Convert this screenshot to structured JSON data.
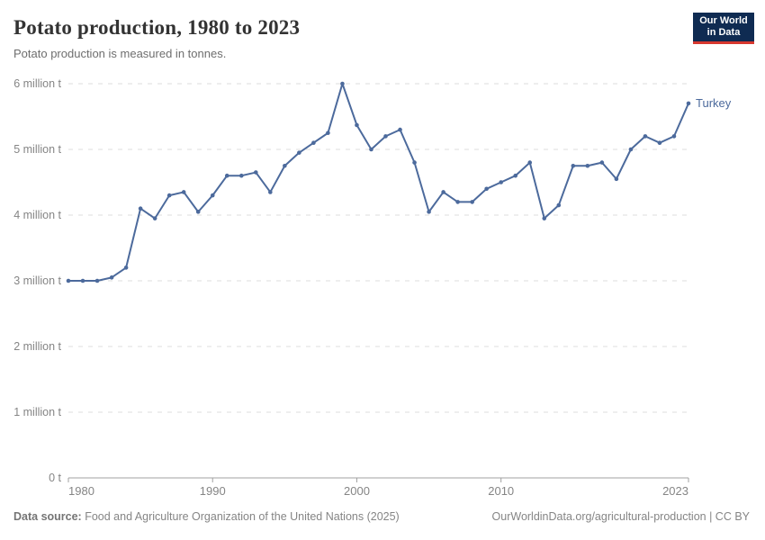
{
  "header": {
    "title": "Potato production, 1980 to 2023",
    "subtitle": "Potato production is measured in tonnes."
  },
  "logo": {
    "line1": "Our World",
    "line2": "in Data",
    "bg_color": "#0f2b52",
    "accent_color": "#d7382f"
  },
  "footer": {
    "source_label": "Data source:",
    "source_text": " Food and Agriculture Organization of the United Nations (2025)",
    "link_text": "OurWorldinData.org/agricultural-production | CC BY"
  },
  "chart_data": {
    "type": "line",
    "title": "Potato production, 1980 to 2023",
    "xlabel": "",
    "ylabel": "",
    "grid": "horizontal-dashed",
    "legend_position": "end-of-line-label",
    "x": [
      1980,
      1981,
      1982,
      1983,
      1984,
      1985,
      1986,
      1987,
      1988,
      1989,
      1990,
      1991,
      1992,
      1993,
      1994,
      1995,
      1996,
      1997,
      1998,
      1999,
      2000,
      2001,
      2002,
      2003,
      2004,
      2005,
      2006,
      2007,
      2008,
      2009,
      2010,
      2011,
      2012,
      2013,
      2014,
      2015,
      2016,
      2017,
      2018,
      2019,
      2020,
      2021,
      2022,
      2023
    ],
    "series": [
      {
        "name": "Turkey",
        "color": "#4c6a9c",
        "values": [
          3000000,
          3000000,
          3000000,
          3050000,
          3200000,
          4100000,
          3950000,
          4300000,
          4350000,
          4050000,
          4300000,
          4600000,
          4600000,
          4650000,
          4350000,
          4750000,
          4950000,
          5100000,
          5250000,
          6000000,
          5370000,
          5000000,
          5200000,
          5300000,
          4800000,
          4050000,
          4350000,
          4200000,
          4200000,
          4400000,
          4500000,
          4600000,
          4800000,
          3950000,
          4150000,
          4750000,
          4750000,
          4800000,
          4550000,
          5000000,
          5200000,
          5100000,
          5200000,
          5700000
        ]
      }
    ],
    "ylim": [
      0,
      6000000
    ],
    "y_ticks": [
      {
        "value": 0,
        "label": "0 t"
      },
      {
        "value": 1000000,
        "label": "1 million t"
      },
      {
        "value": 2000000,
        "label": "2 million t"
      },
      {
        "value": 3000000,
        "label": "3 million t"
      },
      {
        "value": 4000000,
        "label": "4 million t"
      },
      {
        "value": 5000000,
        "label": "5 million t"
      },
      {
        "value": 6000000,
        "label": "6 million t"
      }
    ],
    "x_ticks": [
      1980,
      1990,
      2000,
      2010,
      2023
    ],
    "end_label": "Turkey"
  }
}
